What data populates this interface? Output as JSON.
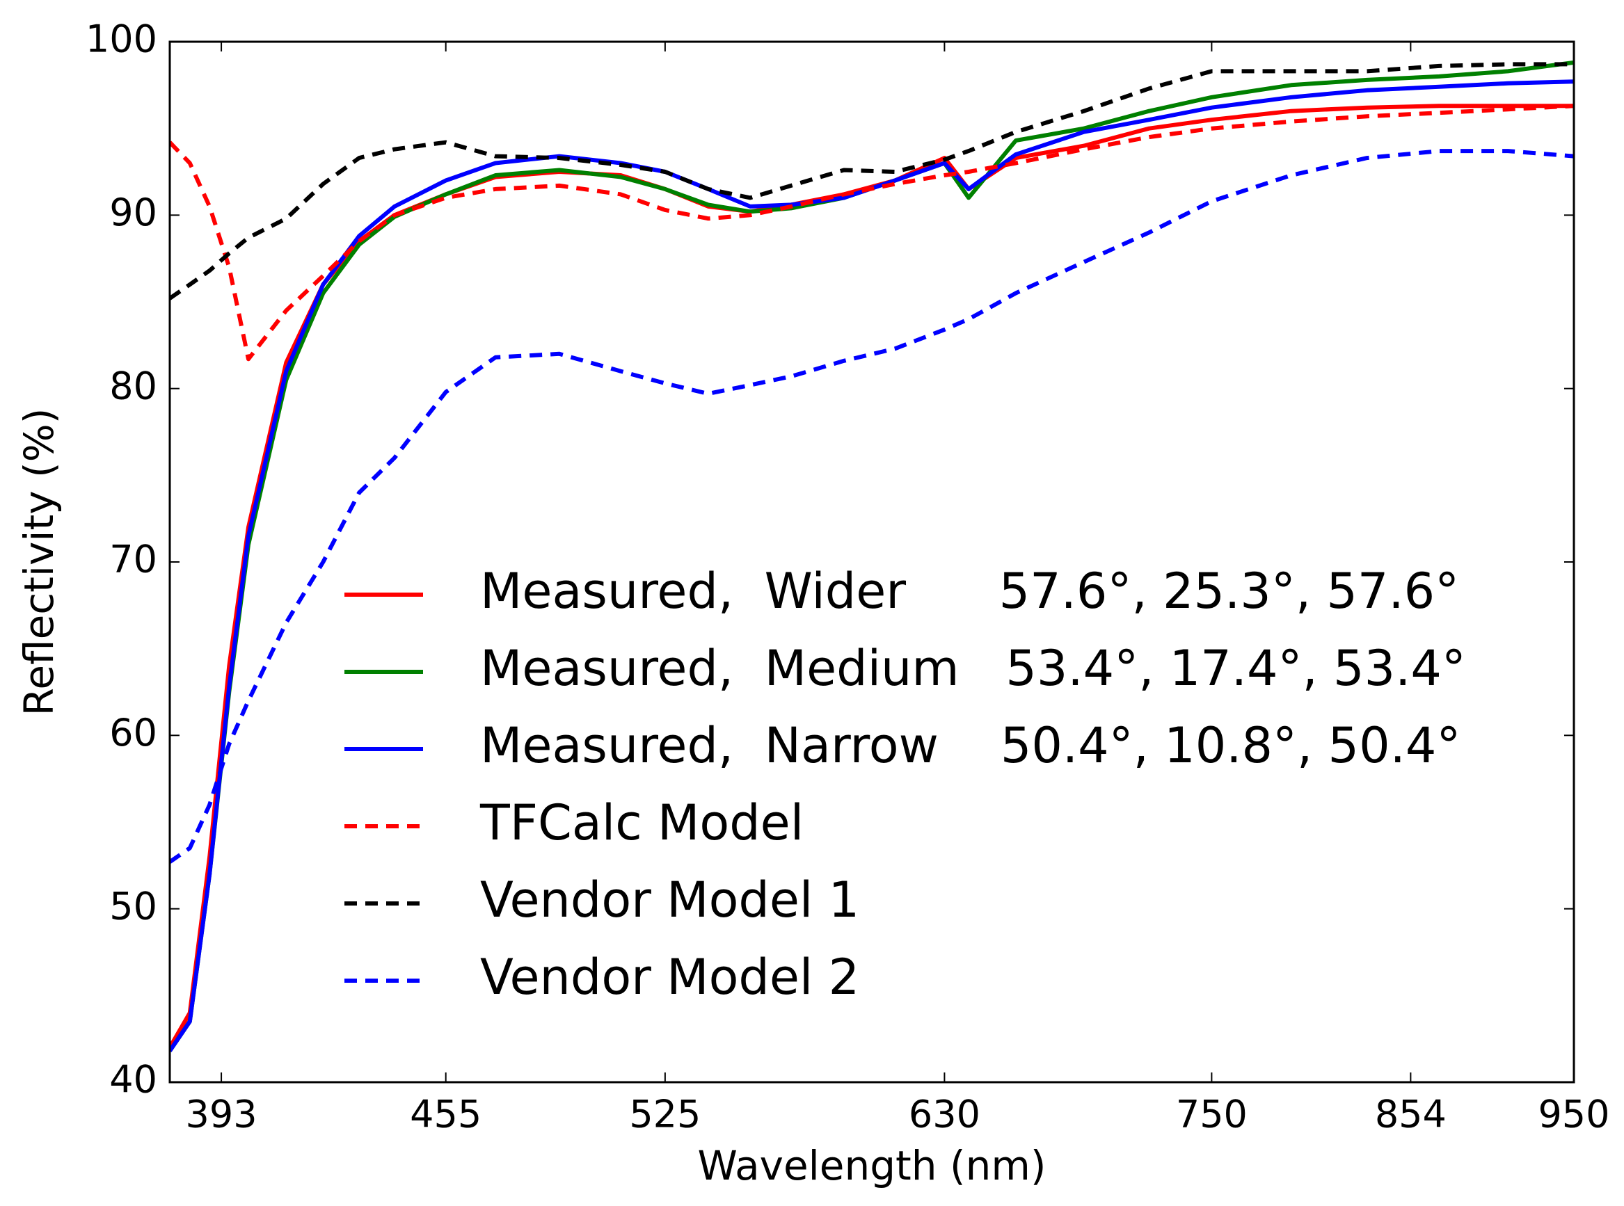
{
  "chart_data": {
    "type": "line",
    "xlabel": "Wavelength (nm)",
    "ylabel": "Reflectivity (%)",
    "xscale": "log",
    "xlim": [
      380,
      950
    ],
    "xticks": [
      393,
      455,
      525,
      630,
      750,
      854,
      950
    ],
    "ylim": [
      40,
      100
    ],
    "yticks": [
      40,
      50,
      60,
      70,
      80,
      90,
      100
    ],
    "x": [
      380,
      385,
      390,
      395,
      400,
      410,
      420,
      430,
      440,
      455,
      470,
      490,
      510,
      525,
      540,
      555,
      570,
      590,
      610,
      630,
      640,
      660,
      690,
      720,
      750,
      790,
      830,
      870,
      910,
      950
    ],
    "series": [
      {
        "name": "Measured,  Wider      57.6°, 25.3°, 57.6°",
        "color": "#ff0000",
        "dash": false,
        "values": [
          42,
          44,
          53,
          64,
          72,
          81.5,
          86,
          88.5,
          90,
          91.2,
          92.2,
          92.5,
          92.3,
          91.5,
          90.5,
          90.2,
          90.6,
          91.2,
          92,
          93.3,
          91.5,
          93.3,
          94,
          95,
          95.5,
          96,
          96.2,
          96.3,
          96.3,
          96.3
        ]
      },
      {
        "name": "Measured,  Medium   53.4°, 17.4°, 53.4°",
        "color": "#008000",
        "dash": false,
        "values": [
          41.8,
          43.5,
          52,
          62.5,
          71,
          80.5,
          85.5,
          88.3,
          89.9,
          91.2,
          92.3,
          92.6,
          92.2,
          91.5,
          90.6,
          90.2,
          90.4,
          91,
          92,
          93,
          91,
          94.3,
          95,
          96,
          96.8,
          97.5,
          97.8,
          98,
          98.3,
          98.8
        ]
      },
      {
        "name": "Measured,  Narrow    50.4°, 10.8°, 50.4°",
        "color": "#0000ff",
        "dash": false,
        "values": [
          41.8,
          43.5,
          52,
          62.8,
          71.5,
          81,
          86,
          88.8,
          90.5,
          92,
          93,
          93.4,
          93,
          92.5,
          91.5,
          90.5,
          90.6,
          91,
          92,
          93,
          91.5,
          93.5,
          94.8,
          95.5,
          96.2,
          96.8,
          97.2,
          97.4,
          97.6,
          97.7
        ]
      },
      {
        "name": "TFCalc Model",
        "color": "#ff0000",
        "dash": true,
        "values": [
          94.2,
          93,
          90.5,
          87,
          81.7,
          84.5,
          86.5,
          88.5,
          90,
          91,
          91.5,
          91.7,
          91.2,
          90.3,
          89.8,
          90,
          90.5,
          91.2,
          91.8,
          92.3,
          92.5,
          93,
          93.8,
          94.5,
          95,
          95.4,
          95.7,
          95.9,
          96.1,
          96.3
        ]
      },
      {
        "name": "Vendor Model 1",
        "color": "#000000",
        "dash": true,
        "values": [
          85.2,
          86,
          86.8,
          87.8,
          88.7,
          89.8,
          91.8,
          93.3,
          93.8,
          94.2,
          93.4,
          93.3,
          92.9,
          92.5,
          91.5,
          91,
          91.7,
          92.6,
          92.5,
          93.2,
          93.7,
          94.8,
          96,
          97.3,
          98.3,
          98.3,
          98.3,
          98.6,
          98.7,
          98.7
        ]
      },
      {
        "name": "Vendor Model 2",
        "color": "#0000ff",
        "dash": true,
        "values": [
          52.7,
          53.5,
          56,
          59.5,
          62,
          66.5,
          70,
          74,
          76,
          79.8,
          81.8,
          82,
          81,
          80.3,
          79.7,
          80.2,
          80.7,
          81.6,
          82.3,
          83.4,
          84,
          85.5,
          87.3,
          89,
          90.8,
          92.3,
          93.3,
          93.7,
          93.7,
          93.4
        ]
      }
    ]
  }
}
